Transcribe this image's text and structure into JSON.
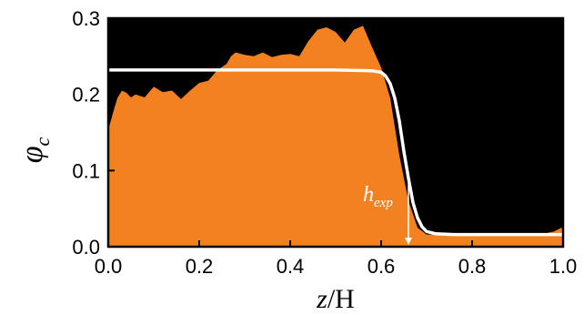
{
  "chart_data": {
    "type": "area",
    "xlabel": "z/H",
    "ylabel": "φc",
    "xlim": [
      0.0,
      1.0
    ],
    "ylim": [
      0.0,
      0.3
    ],
    "x_ticks": [
      "0.0",
      "0.2",
      "0.4",
      "0.6",
      "0.8",
      "1.0"
    ],
    "y_ticks": [
      "0.0",
      "0.1",
      "0.2",
      "0.3"
    ],
    "annotation": "hexp",
    "annotation_x": 0.66,
    "colors": {
      "background": "#000000",
      "area": "#f38120",
      "fit_line": "#ffffff"
    },
    "series": [
      {
        "kind": "area",
        "x": [
          0.0,
          0.01,
          0.02,
          0.03,
          0.04,
          0.05,
          0.06,
          0.08,
          0.1,
          0.12,
          0.14,
          0.16,
          0.18,
          0.2,
          0.22,
          0.24,
          0.26,
          0.27,
          0.28,
          0.3,
          0.32,
          0.34,
          0.36,
          0.38,
          0.4,
          0.42,
          0.44,
          0.46,
          0.48,
          0.5,
          0.52,
          0.54,
          0.56,
          0.58,
          0.6,
          0.62,
          0.64,
          0.66,
          0.68,
          0.7,
          0.72,
          0.74,
          0.76,
          0.8,
          0.85,
          0.9,
          0.95,
          0.98,
          1.0
        ],
        "y": [
          0.153,
          0.175,
          0.195,
          0.205,
          0.202,
          0.196,
          0.2,
          0.196,
          0.21,
          0.203,
          0.205,
          0.194,
          0.205,
          0.215,
          0.218,
          0.232,
          0.24,
          0.25,
          0.255,
          0.252,
          0.25,
          0.255,
          0.249,
          0.252,
          0.253,
          0.25,
          0.27,
          0.285,
          0.288,
          0.282,
          0.268,
          0.285,
          0.29,
          0.262,
          0.235,
          0.195,
          0.12,
          0.06,
          0.025,
          0.016,
          0.016,
          0.016,
          0.016,
          0.016,
          0.016,
          0.016,
          0.016,
          0.02,
          0.026
        ]
      },
      {
        "kind": "line",
        "x": [
          0.0,
          0.5,
          0.58,
          0.6,
          0.61,
          0.62,
          0.63,
          0.64,
          0.65,
          0.66,
          0.67,
          0.68,
          0.69,
          0.7,
          0.72,
          0.76,
          0.8,
          1.0
        ],
        "y": [
          0.232,
          0.232,
          0.231,
          0.229,
          0.224,
          0.214,
          0.195,
          0.165,
          0.125,
          0.09,
          0.058,
          0.038,
          0.026,
          0.02,
          0.017,
          0.016,
          0.016,
          0.016
        ]
      }
    ]
  }
}
